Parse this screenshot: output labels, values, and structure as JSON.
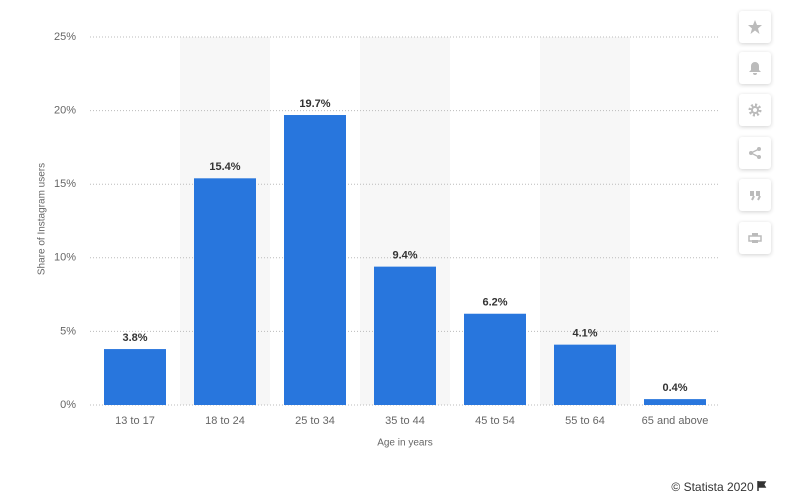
{
  "chart_data": {
    "type": "bar",
    "y_axis_label": "Share of Instagram users",
    "x_axis_label": "Age in years",
    "categories": [
      "13 to 17",
      "18 to 24",
      "25 to 34",
      "35 to 44",
      "45 to 54",
      "55 to 64",
      "65 and above"
    ],
    "values": [
      3.8,
      15.4,
      19.7,
      9.4,
      6.2,
      4.1,
      0.4
    ],
    "value_labels": [
      "3.8%",
      "15.4%",
      "19.7%",
      "9.4%",
      "6.2%",
      "4.1%",
      "0.4%"
    ],
    "color": "#2876dd",
    "ylim": [
      0,
      25
    ],
    "yticks": [
      {
        "value": 0,
        "label": "0%"
      },
      {
        "value": 5,
        "label": "5%"
      },
      {
        "value": 10,
        "label": "10%"
      },
      {
        "value": 15,
        "label": "15%"
      },
      {
        "value": 20,
        "label": "20%"
      },
      {
        "value": 25,
        "label": "25%"
      }
    ],
    "grid": true
  },
  "footer": "© Statista 2020"
}
